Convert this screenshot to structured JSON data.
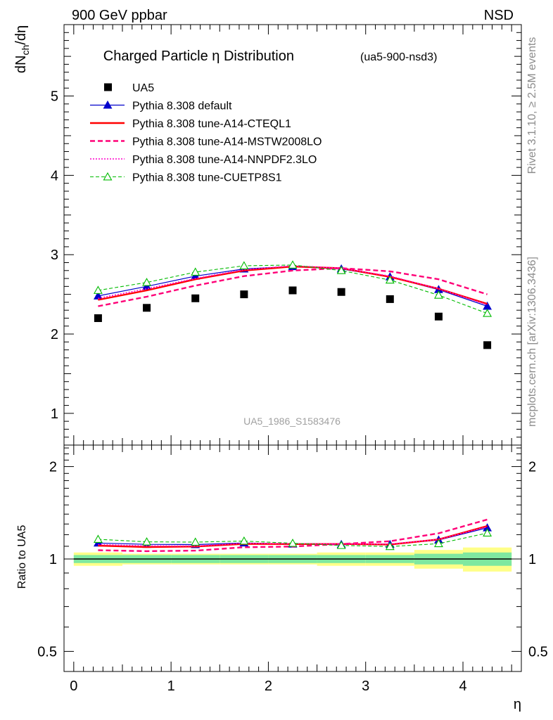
{
  "header": {
    "left": "900 GeV ppbar",
    "right": "NSD"
  },
  "side_text": {
    "rivet": "Rivet 3.1.10, ≥ 2.5M events",
    "mcplots": "mcplots.cern.ch [arXiv:1306.3436]"
  },
  "chart_data": [
    {
      "type": "scatter",
      "title": "Charged Particle η Distribution",
      "subtitle": "(ua5-900-nsd3)",
      "ylabel": "dN_ch/dη",
      "analysis_label": "UA5_1986_S1583476",
      "ylim": [
        0.6,
        5.9
      ],
      "yticks": [
        1,
        2,
        3,
        4,
        5
      ],
      "xlim": [
        -0.1,
        4.6
      ],
      "x": [
        0.25,
        0.75,
        1.25,
        1.75,
        2.25,
        2.75,
        3.25,
        3.75,
        4.25
      ],
      "legend_position": "top-left",
      "series": [
        {
          "name": "UA5",
          "style": "data",
          "color": "#000000",
          "marker": "square",
          "values": [
            2.2,
            2.33,
            2.45,
            2.5,
            2.55,
            2.53,
            2.44,
            2.22,
            1.86
          ]
        },
        {
          "name": "Pythia 8.308 default",
          "style": "solid",
          "color": "#0000cc",
          "marker": "triangle-filled",
          "values": [
            2.48,
            2.6,
            2.73,
            2.82,
            2.85,
            2.82,
            2.72,
            2.56,
            2.35
          ]
        },
        {
          "name": "Pythia 8.308 tune-A14-CTEQL1",
          "style": "solid-thick",
          "color": "#ff0000",
          "marker": "none",
          "values": [
            2.43,
            2.55,
            2.69,
            2.8,
            2.85,
            2.83,
            2.72,
            2.57,
            2.38
          ]
        },
        {
          "name": "Pythia 8.308 tune-A14-MSTW2008LO",
          "style": "dashed",
          "color": "#ff0077",
          "marker": "none",
          "values": [
            2.35,
            2.47,
            2.61,
            2.73,
            2.8,
            2.83,
            2.79,
            2.69,
            2.5
          ]
        },
        {
          "name": "Pythia 8.308 tune-A14-NNPDF2.3LO",
          "style": "dotted",
          "color": "#ff00cc",
          "marker": "none",
          "values": [
            2.45,
            2.57,
            2.7,
            2.81,
            2.86,
            2.83,
            2.73,
            2.57,
            2.37
          ]
        },
        {
          "name": "Pythia 8.308 tune-CUETP8S1",
          "style": "dashed-thin",
          "color": "#00bb00",
          "marker": "triangle-open",
          "values": [
            2.55,
            2.65,
            2.78,
            2.86,
            2.87,
            2.8,
            2.68,
            2.49,
            2.26
          ]
        }
      ]
    },
    {
      "type": "line",
      "ylabel": "Ratio to UA5",
      "xlabel": "η",
      "ylim": [
        0.43,
        2.35
      ],
      "yticks": [
        0.5,
        1,
        2
      ],
      "ytick_labels": [
        "0.5",
        "1",
        "2"
      ],
      "xlim": [
        -0.1,
        4.6
      ],
      "xticks": [
        0,
        1,
        2,
        3,
        4
      ],
      "x": [
        0.25,
        0.75,
        1.25,
        1.75,
        2.25,
        2.75,
        3.25,
        3.75,
        4.25
      ],
      "uncertainty_bands": {
        "edges": [
          0,
          0.5,
          1,
          1.5,
          2,
          2.5,
          3,
          3.5,
          4,
          4.5
        ],
        "inner": [
          0.03,
          0.03,
          0.03,
          0.03,
          0.03,
          0.03,
          0.03,
          0.04,
          0.05
        ],
        "outer": [
          0.05,
          0.04,
          0.04,
          0.04,
          0.04,
          0.05,
          0.05,
          0.07,
          0.09
        ],
        "inner_color": "#7fe8a0",
        "outer_color": "#ffff88"
      },
      "series": [
        {
          "name": "Pythia 8.308 default",
          "color": "#0000cc",
          "style": "solid",
          "marker": "triangle-filled",
          "values": [
            1.127,
            1.116,
            1.114,
            1.128,
            1.118,
            1.115,
            1.115,
            1.153,
            1.263
          ]
        },
        {
          "name": "Pythia 8.308 tune-A14-CTEQL1",
          "color": "#ff0000",
          "style": "solid-thick",
          "marker": "none",
          "values": [
            1.105,
            1.094,
            1.098,
            1.12,
            1.118,
            1.119,
            1.115,
            1.158,
            1.28
          ]
        },
        {
          "name": "Pythia 8.308 tune-A14-MSTW2008LO",
          "color": "#ff0077",
          "style": "dashed",
          "marker": "none",
          "values": [
            1.068,
            1.06,
            1.065,
            1.092,
            1.098,
            1.119,
            1.143,
            1.212,
            1.344
          ]
        },
        {
          "name": "Pythia 8.308 tune-A14-NNPDF2.3LO",
          "color": "#ff00cc",
          "style": "dotted",
          "marker": "none",
          "values": [
            1.114,
            1.103,
            1.102,
            1.124,
            1.122,
            1.119,
            1.119,
            1.158,
            1.274
          ]
        },
        {
          "name": "Pythia 8.308 tune-CUETP8S1",
          "color": "#00bb00",
          "style": "dashed-thin",
          "marker": "triangle-open",
          "values": [
            1.159,
            1.137,
            1.135,
            1.144,
            1.125,
            1.107,
            1.098,
            1.122,
            1.215
          ]
        }
      ]
    }
  ]
}
